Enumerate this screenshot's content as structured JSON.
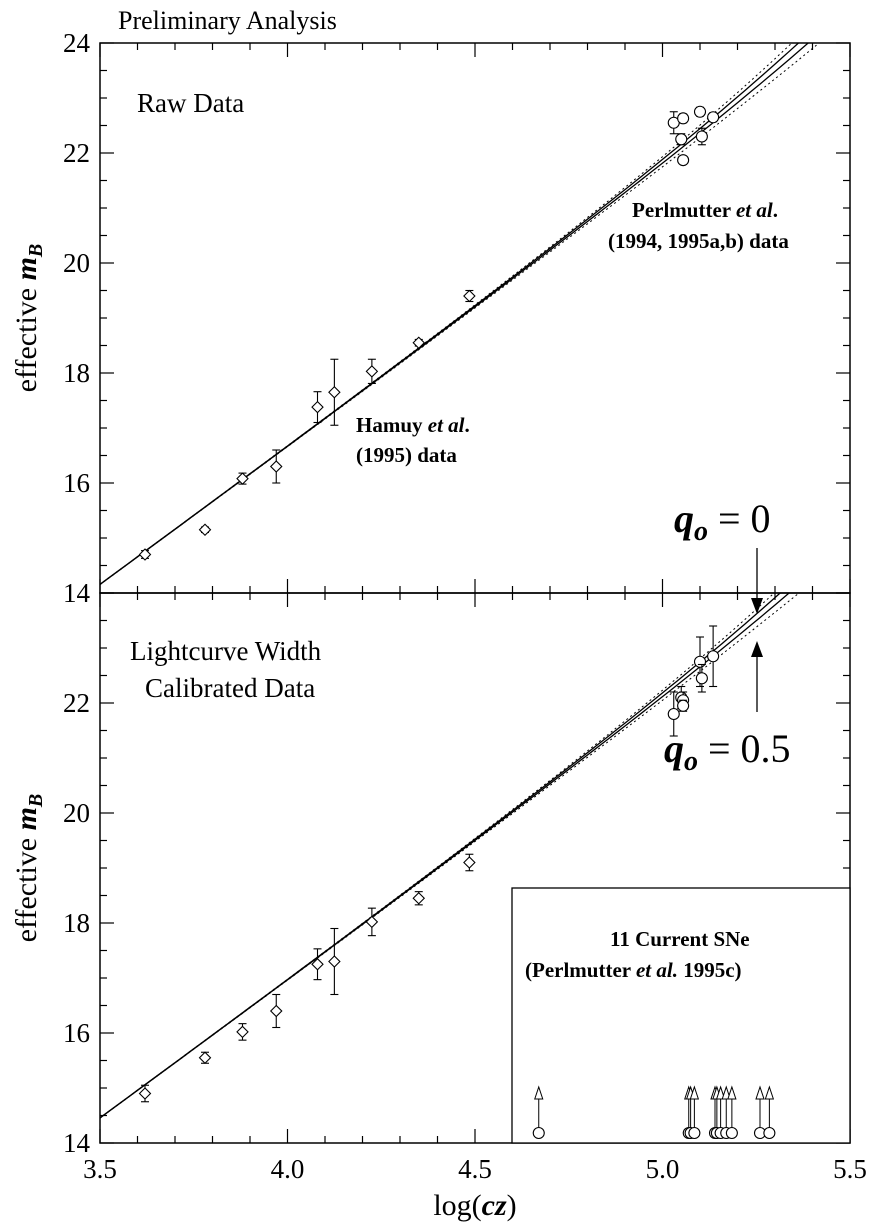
{
  "header": {
    "title": "Preliminary Analysis"
  },
  "chart_data": [
    {
      "type": "scatter",
      "panel": "top",
      "panel_label": "Raw Data",
      "xlabel_parts": [
        "log(",
        "cz",
        ")"
      ],
      "ylabel_parts": [
        "effective ",
        "m",
        "B"
      ],
      "xlim": [
        3.5,
        5.5
      ],
      "ylim": [
        14,
        24
      ],
      "x_ticks": [
        "3.5",
        "4.0",
        "4.5",
        "5.0",
        "5.5"
      ],
      "y_ticks": [
        "14",
        "16",
        "18",
        "20",
        "22",
        "24"
      ],
      "annotations": {
        "hamuy": {
          "line1_a": "Hamuy ",
          "line1_b": "et al",
          "line1_c": ".",
          "line2": "(1995) data"
        },
        "perl": {
          "line1_a": "Perlmutter ",
          "line1_b": "et al",
          "line1_c": ".",
          "line2": "(1994, 1995a,b) data"
        }
      },
      "series": [
        {
          "name": "Hamuy et al. (1995) data",
          "marker": "diamond",
          "points": [
            {
              "x": 3.62,
              "y": 14.7,
              "err": 0.07
            },
            {
              "x": 3.78,
              "y": 15.15,
              "err": 0.05
            },
            {
              "x": 3.88,
              "y": 16.08,
              "err": 0.1
            },
            {
              "x": 3.97,
              "y": 16.3,
              "err": 0.3
            },
            {
              "x": 4.08,
              "y": 17.38,
              "err": 0.28
            },
            {
              "x": 4.125,
              "y": 17.65,
              "err": 0.6
            },
            {
              "x": 4.225,
              "y": 18.03,
              "err": 0.22
            },
            {
              "x": 4.35,
              "y": 18.55,
              "err": 0.06
            },
            {
              "x": 4.485,
              "y": 19.4,
              "err": 0.1
            }
          ]
        },
        {
          "name": "Perlmutter et al. (1994, 1995a,b) data",
          "marker": "circle",
          "points": [
            {
              "x": 5.03,
              "y": 22.55,
              "err": 0.2
            },
            {
              "x": 5.05,
              "y": 22.25,
              "err": 0.1
            },
            {
              "x": 5.055,
              "y": 22.63,
              "err": 0.08
            },
            {
              "x": 5.055,
              "y": 21.87,
              "err": 0.06
            },
            {
              "x": 5.1,
              "y": 22.75,
              "err": 0.08
            },
            {
              "x": 5.105,
              "y": 22.3,
              "err": 0.15
            },
            {
              "x": 5.135,
              "y": 22.65,
              "err": 0.08
            }
          ]
        }
      ]
    },
    {
      "type": "scatter",
      "panel": "bottom",
      "panel_label_lines": [
        "Lightcurve Width",
        "Calibrated Data"
      ],
      "xlabel_parts": [
        "log(",
        "cz",
        ")"
      ],
      "ylabel_parts": [
        "effective ",
        "m",
        "B"
      ],
      "xlim": [
        3.5,
        5.5
      ],
      "ylim": [
        14,
        24
      ],
      "x_ticks": [
        "3.5",
        "4.0",
        "4.5",
        "5.0",
        "5.5"
      ],
      "y_ticks": [
        "14",
        "16",
        "18",
        "20",
        "22"
      ],
      "q_labels": {
        "q0": {
          "sym": "q",
          "sub": "o",
          "val": " = 0"
        },
        "q05": {
          "sym": "q",
          "sub": "o",
          "val": " = 0.5"
        }
      },
      "inset": {
        "title": "11 Current SNe",
        "subtitle_a": "(Perlmutter ",
        "subtitle_b": "et al.",
        "subtitle_c": " 1995c)",
        "lower_limit_x": [
          4.67,
          5.07,
          5.075,
          5.085,
          5.14,
          5.145,
          5.155,
          5.17,
          5.185,
          5.26,
          5.285
        ]
      },
      "series": [
        {
          "name": "Hamuy et al. (1995) data",
          "marker": "diamond",
          "points": [
            {
              "x": 3.62,
              "y": 14.9,
              "err": 0.15
            },
            {
              "x": 3.78,
              "y": 15.55,
              "err": 0.1
            },
            {
              "x": 3.88,
              "y": 16.02,
              "err": 0.15
            },
            {
              "x": 3.97,
              "y": 16.4,
              "err": 0.3
            },
            {
              "x": 4.08,
              "y": 17.25,
              "err": 0.28
            },
            {
              "x": 4.125,
              "y": 17.3,
              "err": 0.6
            },
            {
              "x": 4.225,
              "y": 18.02,
              "err": 0.25
            },
            {
              "x": 4.35,
              "y": 18.45,
              "err": 0.12
            },
            {
              "x": 4.485,
              "y": 19.1,
              "err": 0.15
            }
          ]
        },
        {
          "name": "Perlmutter et al. (1994, 1995a,b) data",
          "marker": "circle",
          "points": [
            {
              "x": 5.03,
              "y": 21.8,
              "err": 0.4
            },
            {
              "x": 5.05,
              "y": 22.1,
              "err": 0.2
            },
            {
              "x": 5.055,
              "y": 22.05,
              "err": 0.15
            },
            {
              "x": 5.055,
              "y": 21.95,
              "err": 0.1
            },
            {
              "x": 5.1,
              "y": 22.75,
              "err": 0.45
            },
            {
              "x": 5.105,
              "y": 22.45,
              "err": 0.25
            },
            {
              "x": 5.135,
              "y": 22.85,
              "err": 0.55
            }
          ]
        }
      ]
    }
  ]
}
